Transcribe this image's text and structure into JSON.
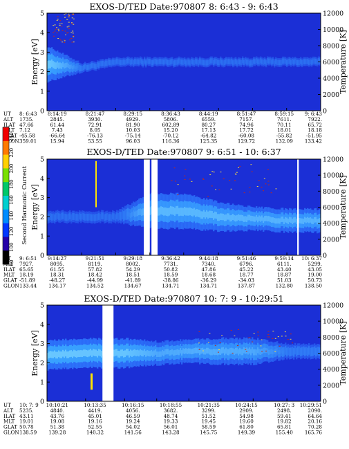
{
  "colors": {
    "background": "#1b2fd6",
    "band_outer": "#2f7bff",
    "band_mid": "#3aa6ff",
    "band_core": "#77d2ff",
    "gap": "#ffffff",
    "hot": "#ffe400",
    "speck_red": "#c02a1a",
    "speck_yellow": "#f2d34a"
  },
  "colorbar": {
    "label": "Second Harmonic Current",
    "ticks": [
      "240",
      "220",
      "200",
      "180",
      "160",
      "140",
      "120",
      "100",
      "80"
    ],
    "colors": [
      "#f10000",
      "#ff7a00",
      "#ffd000",
      "#7ae000",
      "#00c86a",
      "#00d0d0",
      "#008cff",
      "#0037ff",
      "#2400a8",
      "#000000"
    ]
  },
  "panels": [
    {
      "title": "EXOS-D/TED   Date:970807  8: 6:43 -  9: 6:43",
      "ylabel": "Energy [eV]",
      "y2label": "Temperature [K]",
      "yticks": [
        "5",
        "4",
        "3",
        "2",
        "1",
        "0"
      ],
      "y2ticks": [
        "12000",
        "10000",
        "8000",
        "6000",
        "4000",
        "2000",
        "0"
      ],
      "rows": [
        {
          "label": "UT",
          "values": [
            "8: 6:43",
            "8:14:19",
            "8:21:47",
            "8:29:15",
            "8:36:43",
            "8:44:19",
            "8:51:47",
            "8:59:15",
            "9: 6:43"
          ]
        },
        {
          "label": "ALT",
          "values": [
            "1735.",
            "2845.",
            "3930.",
            "4929.",
            "5806.",
            "6559.",
            "7157.",
            "7611.",
            "7922."
          ]
        },
        {
          "label": "ILAT",
          "values": [
            "47.66",
            "61.44",
            "72.91",
            "81.90",
            "602.89",
            "80.27",
            "74.96",
            "70.11",
            "65.72"
          ]
        },
        {
          "label": "MLT",
          "values": [
            "7.12",
            "7.43",
            "8.05",
            "10.03",
            "15.20",
            "17.13",
            "17.72",
            "18.01",
            "18.18"
          ]
        },
        {
          "label": "GLAT",
          "values": [
            "-45.58",
            "-66.64",
            "-76.13",
            "-75.14",
            "-70.12",
            "-64.82",
            "-60.08",
            "-55.82",
            "-51.95"
          ]
        },
        {
          "label": "GLON",
          "values": [
            "359.01",
            "15.94",
            "53.55",
            "96.03",
            "116.36",
            "125.35",
            "129.72",
            "132.09",
            "133.42"
          ]
        }
      ]
    },
    {
      "title": "EXOS-D/TED   Date:970807  9: 6:51 - 10: 6:37",
      "ylabel": "Energy [eV]",
      "y2label": "Temperature [K]",
      "yticks": [
        "5",
        "4",
        "3",
        "2",
        "1",
        "0"
      ],
      "y2ticks": [
        "12000",
        "10000",
        "8000",
        "6000",
        "4000",
        "2000",
        "0"
      ],
      "rows": [
        {
          "label": "UT",
          "values": [
            "9: 6:51",
            "9:14:27",
            "9:21:51",
            "9:29:18",
            "9:36:42",
            "9:44:18",
            "9:51:46",
            "9:59:14",
            "10: 6:37"
          ]
        },
        {
          "label": "ALT",
          "values": [
            "7927.",
            "8095.",
            "8119.",
            "8002.",
            "7731.",
            "7340.",
            "6796.",
            "6111.",
            "5299."
          ]
        },
        {
          "label": "ILAT",
          "values": [
            "65.65",
            "61.55",
            "57.82",
            "54.29",
            "50.82",
            "47.86",
            "45.22",
            "43.40",
            "43.05"
          ]
        },
        {
          "label": "MLT",
          "values": [
            "18.19",
            "18.31",
            "18.42",
            "18.51",
            "18.59",
            "18.68",
            "18.77",
            "18.87",
            "19.00"
          ]
        },
        {
          "label": "GLAT",
          "values": [
            "-51.89",
            "-48.27",
            "-44.99",
            "-41.89",
            "-38.86",
            "-36.29",
            "-34.03",
            "51.03",
            "50.73"
          ]
        },
        {
          "label": "GLON",
          "values": [
            "133.44",
            "134.17",
            "134.52",
            "134.67",
            "134.71",
            "134.71",
            "137.87",
            "132.80",
            "138.50"
          ]
        }
      ]
    },
    {
      "title": "EXOS-D/TED   Date:970807  10: 7: 9 - 10:29:51",
      "ylabel": "Energy [eV]",
      "y2label": "Temperature [K]",
      "yticks": [
        "5",
        "4",
        "3",
        "2",
        "1",
        "0"
      ],
      "y2ticks": [
        "12000",
        "10000",
        "8000",
        "6000",
        "4000",
        "2000",
        "0"
      ],
      "rows": [
        {
          "label": "UT",
          "values": [
            "10: 7: 9",
            "10:10:21",
            "10:13:35",
            "10:16:15",
            "10:18:55",
            "10:21:35",
            "10:24:15",
            "10:27: 3",
            "10:29:51"
          ]
        },
        {
          "label": "ALT",
          "values": [
            "5235.",
            "4840.",
            "4419.",
            "4056.",
            "3682.",
            "3299.",
            "2909.",
            "2498.",
            "2090."
          ]
        },
        {
          "label": "ILAT",
          "values": [
            "43.11",
            "43.76",
            "45.01",
            "46.59",
            "48.74",
            "51.52",
            "54.98",
            "59.41",
            "64.64"
          ]
        },
        {
          "label": "MLT",
          "values": [
            "19.01",
            "19.08",
            "19.16",
            "19.24",
            "19.33",
            "19.45",
            "19.60",
            "19.82",
            "20.16"
          ]
        },
        {
          "label": "GLAT",
          "values": [
            "50.78",
            "51.38",
            "52.55",
            "54.02",
            "56.01",
            "58.59",
            "61.80",
            "65.81",
            "70.28"
          ]
        },
        {
          "label": "GLON",
          "values": [
            "138.59",
            "139.28",
            "140.32",
            "141.56",
            "143.28",
            "145.75",
            "149.39",
            "155.40",
            "165.76"
          ]
        }
      ]
    }
  ],
  "chart_data": [
    {
      "type": "heatmap",
      "title": "EXOS-D/TED   Date:970807  8: 6:43 -  9: 6:43",
      "xlabel": "UT",
      "ylabel": "Energy [eV]",
      "y2label": "Temperature [K]",
      "ylim": [
        0,
        5
      ],
      "y2lim": [
        0,
        12000
      ],
      "x": [
        "8: 6:43",
        "8:14:19",
        "8:21:47",
        "8:29:15",
        "8:36:43",
        "8:44:19",
        "8:51:47",
        "8:59:15",
        "9: 6:43"
      ],
      "band_center_eV": [
        2.4,
        2.2,
        2.5,
        2.5,
        2.5,
        2.5,
        2.5,
        2.5,
        2.5
      ],
      "band_halfwidth_eV": [
        0.6,
        0.15,
        0.15,
        0.15,
        0.15,
        0.15,
        0.15,
        0.15,
        0.15
      ],
      "band_intensity": [
        0.95,
        0.25,
        0.15,
        0.15,
        0.15,
        0.15,
        0.15,
        0.15,
        0.15
      ],
      "data_gaps": []
    },
    {
      "type": "heatmap",
      "title": "EXOS-D/TED   Date:970807  9: 6:51 - 10: 6:37",
      "xlabel": "UT",
      "ylabel": "Energy [eV]",
      "y2label": "Temperature [K]",
      "ylim": [
        0,
        5
      ],
      "y2lim": [
        0,
        12000
      ],
      "x": [
        "9: 6:51",
        "9:14:27",
        "9:21:51",
        "9:29:18",
        "9:36:42",
        "9:44:18",
        "9:51:46",
        "9:59:14",
        "10: 6:37"
      ],
      "band_center_eV": [
        2.0,
        2.0,
        2.0,
        2.3,
        2.3,
        2.0,
        1.9,
        1.8,
        1.8
      ],
      "band_halfwidth_eV": [
        0.2,
        0.2,
        0.2,
        0.6,
        0.6,
        0.5,
        0.4,
        0.4,
        0.4
      ],
      "band_intensity": [
        0.15,
        0.15,
        0.15,
        0.75,
        0.75,
        0.75,
        0.7,
        0.7,
        0.7
      ],
      "data_gaps": [
        [
          "9:28:00",
          "9:29:18"
        ],
        [
          "9:29:40",
          "9:31:00"
        ],
        [
          "10: 1:30",
          "10: 1:50"
        ]
      ]
    },
    {
      "type": "heatmap",
      "title": "EXOS-D/TED   Date:970807  10: 7: 9 - 10:29:51",
      "xlabel": "UT",
      "ylabel": "Energy [eV]",
      "y2label": "Temperature [K]",
      "ylim": [
        0,
        5
      ],
      "y2lim": [
        0,
        12000
      ],
      "x": [
        "10: 7: 9",
        "10:10:21",
        "10:13:35",
        "10:16:15",
        "10:18:55",
        "10:21:35",
        "10:24:15",
        "10:27: 3",
        "10:29:51"
      ],
      "band_center_eV": [
        2.4,
        2.5,
        2.5,
        2.5,
        2.6,
        2.6,
        2.6,
        2.6,
        2.6
      ],
      "band_halfwidth_eV": [
        0.5,
        0.5,
        0.5,
        0.4,
        0.4,
        0.45,
        0.45,
        0.25,
        0.25
      ],
      "band_intensity": [
        0.95,
        0.9,
        0.9,
        0.6,
        0.65,
        0.65,
        0.6,
        0.3,
        0.3
      ],
      "data_gaps": [
        [
          "10:11:45",
          "10:12:40"
        ]
      ]
    }
  ]
}
